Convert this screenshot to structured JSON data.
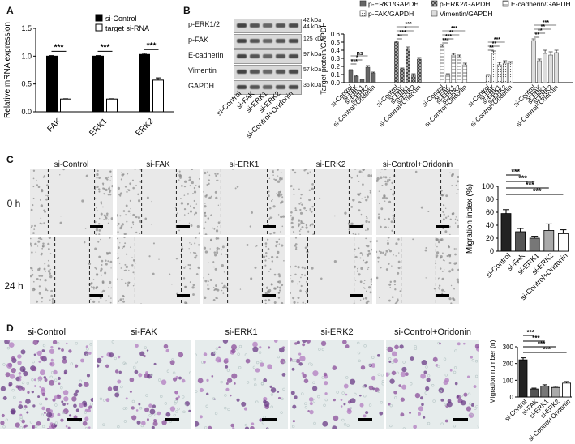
{
  "panels": {
    "A": "A",
    "B": "B",
    "C": "C",
    "D": "D"
  },
  "panelA": {
    "chart_data": {
      "type": "bar",
      "categories": [
        "FAK",
        "ERK1",
        "ERK2"
      ],
      "series": [
        {
          "name": "si-Control",
          "values": [
            1.0,
            1.0,
            1.03
          ],
          "errors": [
            0.01,
            0.01,
            0.02
          ],
          "color": "#000000"
        },
        {
          "name": "target si-RNA",
          "values": [
            0.23,
            0.23,
            0.57
          ],
          "errors": [
            0.005,
            0.005,
            0.04
          ],
          "color": "#ffffff"
        }
      ],
      "ylabel": "Relative mRNA expression",
      "ylim": [
        0,
        1.5
      ],
      "yticks": [
        "0.0",
        "0.5",
        "1.0",
        "1.5"
      ],
      "sig": [
        "***",
        "***",
        "***"
      ],
      "legend_position": "top-right"
    }
  },
  "panelB": {
    "blot": {
      "rows": [
        {
          "label": "p-ERK1/2",
          "kda": [
            "42 kDa",
            "44 kDa"
          ]
        },
        {
          "label": "p-FAK",
          "kda": [
            "125 kDa"
          ]
        },
        {
          "label": "E-cadherin",
          "kda": [
            "97 kDa"
          ]
        },
        {
          "label": "Vimentin",
          "kda": [
            "57 kDa"
          ]
        },
        {
          "label": "GAPDH",
          "kda": [
            "36 kDa"
          ]
        }
      ],
      "lanes": [
        "si-Control",
        "si-FAK",
        "si-ERK1",
        "si-ERK2",
        "si-Control+Oridonin"
      ]
    },
    "chart_data": {
      "type": "bar",
      "categories": [
        "si-Control",
        "si-FAK",
        "si-ERK1",
        "si-ERK2",
        "si-Control+Oridonin"
      ],
      "groups": [
        {
          "name": "p-ERK1/GAPDH",
          "values": [
            0.15,
            0.08,
            0.04,
            0.19,
            0.12
          ],
          "errors": [
            0.01,
            0.01,
            0.005,
            0.02,
            0.01
          ],
          "pattern": "dark",
          "sig": [
            "***",
            "*",
            "ns"
          ]
        },
        {
          "name": "p-ERK2/GAPDH",
          "values": [
            0.5,
            0.17,
            0.42,
            0.1,
            0.29
          ],
          "errors": [
            0.01,
            0.01,
            0.02,
            0.01,
            0.02
          ],
          "pattern": "cross",
          "sig": [
            "**",
            "***",
            "*",
            "***"
          ]
        },
        {
          "name": "E-cadherin/GAPDH",
          "values": [
            0.45,
            0.1,
            0.34,
            0.32,
            0.22
          ],
          "errors": [
            0.02,
            0.01,
            0.02,
            0.02,
            0.02
          ],
          "pattern": "hatch",
          "sig": [
            "***",
            "***",
            "**",
            "***"
          ]
        },
        {
          "name": "p-FAK/GAPDH",
          "values": [
            0.09,
            0.36,
            0.22,
            0.24,
            0.24
          ],
          "errors": [
            0.01,
            0.03,
            0.03,
            0.03,
            0.02
          ],
          "pattern": "dots",
          "sig": [
            "**",
            "**",
            "***"
          ]
        },
        {
          "name": "Vimentin/GAPDH",
          "values": [
            0.52,
            0.27,
            0.36,
            0.34,
            0.37
          ],
          "errors": [
            0.02,
            0.02,
            0.04,
            0.04,
            0.03
          ],
          "pattern": "light",
          "sig": [
            "**",
            "**",
            "**",
            "***"
          ]
        }
      ],
      "ylabel": "Target protein/GAPDH",
      "ylim": [
        0,
        0.6
      ],
      "yticks": [
        "0.0",
        "0.1",
        "0.2",
        "0.3",
        "0.4",
        "0.5",
        "0.6"
      ],
      "legend_position": "top"
    }
  },
  "panelC": {
    "columns": [
      "si-Control",
      "si-FAK",
      "si-ERK1",
      "si-ERK2",
      "si-Control+Oridonin"
    ],
    "rows": [
      "0 h",
      "24 h"
    ],
    "chart_data": {
      "type": "bar",
      "categories": [
        "si-Control",
        "si-FAK",
        "si-ERK1",
        "si-ERK2",
        "si-Control+Oridonin"
      ],
      "values": [
        58,
        30,
        20,
        32,
        27
      ],
      "errors": [
        6,
        5,
        3,
        10,
        6
      ],
      "colors": [
        "#222222",
        "#555555",
        "#777777",
        "#aaaaaa",
        "#ffffff"
      ],
      "ylabel": "Migration index (%)",
      "ylim": [
        0,
        100
      ],
      "yticks": [
        "0",
        "20",
        "40",
        "60",
        "80",
        "100"
      ],
      "sig": [
        "***",
        "***",
        "***",
        "***"
      ]
    }
  },
  "panelD": {
    "columns": [
      "si-Control",
      "si-FAK",
      "si-ERK1",
      "si-ERK2",
      "si-Control+Oridonin"
    ],
    "chart_data": {
      "type": "bar",
      "categories": [
        "si-Control",
        "si-FAK",
        "si-ERK1",
        "si-ERK2",
        "si-Control+Oridonin"
      ],
      "values": [
        222,
        48,
        65,
        57,
        83
      ],
      "errors": [
        12,
        5,
        8,
        7,
        9
      ],
      "colors": [
        "#222222",
        "#555555",
        "#777777",
        "#aaaaaa",
        "#ffffff"
      ],
      "ylabel": "Migration number (n)",
      "ylim": [
        0,
        300
      ],
      "yticks": [
        "0",
        "100",
        "200",
        "300"
      ],
      "sig": [
        "***",
        "***",
        "***",
        "***"
      ]
    }
  }
}
